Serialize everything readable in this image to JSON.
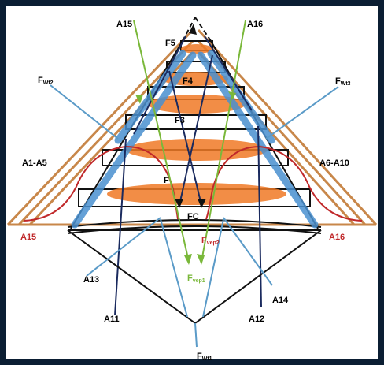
{
  "labels": {
    "a15_top": "A15",
    "a16_top": "A16",
    "f5": "F5",
    "f4": "F4",
    "f3": "F3",
    "f": "F",
    "fc": "FC",
    "fwt2": {
      "main": "F",
      "sub": "Wt2"
    },
    "fwt3": {
      "main": "F",
      "sub": "Wt3"
    },
    "a1_a5": "A1-A5",
    "a6_a10": "A6-A10",
    "a15_left": "A15",
    "a16_right": "A16",
    "fvep1": {
      "main": "F",
      "sub": "vep1"
    },
    "fvep2": {
      "main": "F",
      "sub": "vep2"
    },
    "a13": "A13",
    "a14": "A14",
    "a11": "A11",
    "a12": "A12",
    "fwt1": {
      "main": "F",
      "sub": "Wt1"
    }
  },
  "colors": {
    "background": "#0b1e33",
    "panel": "#ffffff",
    "tan": "#c8874a",
    "orange": "#f07a26",
    "blue": "#4a90d0",
    "steel": "#5b9bc8",
    "green": "#7ab83a",
    "red": "#c0282a",
    "navy": "#1a2a5e",
    "black": "#111111"
  }
}
